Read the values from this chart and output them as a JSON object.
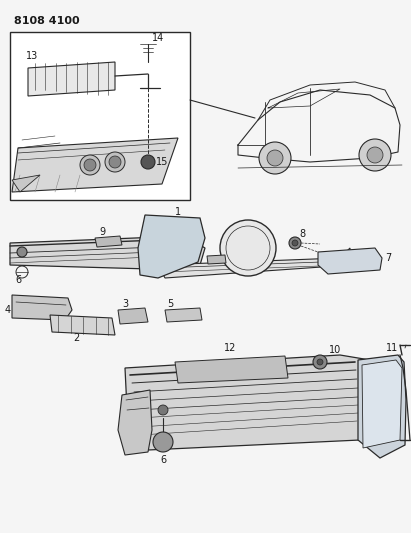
{
  "title": "8108 4100",
  "bg": "#f5f5f5",
  "lc": "#2a2a2a",
  "tc": "#1a1a1a",
  "fw": 4.11,
  "fh": 5.33,
  "dpi": 100
}
